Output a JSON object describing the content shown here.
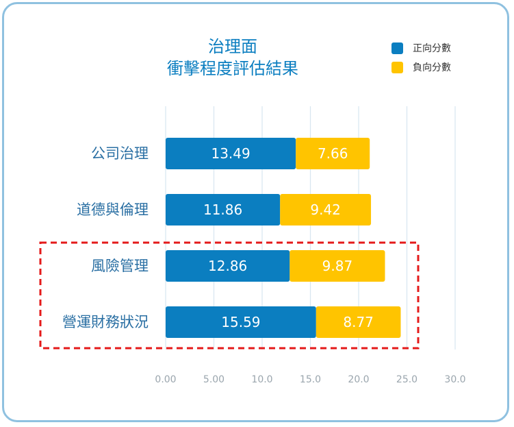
{
  "chart_data": {
    "type": "bar",
    "orientation": "horizontal",
    "stacked": true,
    "title_lines": [
      "治理面",
      "衝擊程度評估結果"
    ],
    "categories": [
      "公司治理",
      "道德與倫理",
      "風險管理",
      "營運財務狀況"
    ],
    "series": [
      {
        "name": "正向分數",
        "color": "#0b7ec0",
        "values": [
          13.49,
          11.86,
          12.86,
          15.59
        ],
        "labels": [
          "13.49",
          "11.86",
          "12.86",
          "15.59"
        ]
      },
      {
        "name": "負向分數",
        "color": "#ffc400",
        "values": [
          7.66,
          9.42,
          9.87,
          8.77
        ],
        "labels": [
          "7.66",
          "9.42",
          "9.87",
          "8.77"
        ]
      }
    ],
    "xlim": [
      0,
      30
    ],
    "xticks": [
      0,
      5,
      10,
      15,
      20,
      25,
      30
    ],
    "xtick_labels": [
      "0.00",
      "5.00",
      "10.0",
      "15.0",
      "20.0",
      "25.0",
      "30.0"
    ],
    "grid": true,
    "legend_position": "top-right",
    "highlight": {
      "categories": [
        "風險管理",
        "營運財務狀況"
      ],
      "style": "dashed red box",
      "color": "#e41a1a"
    }
  }
}
